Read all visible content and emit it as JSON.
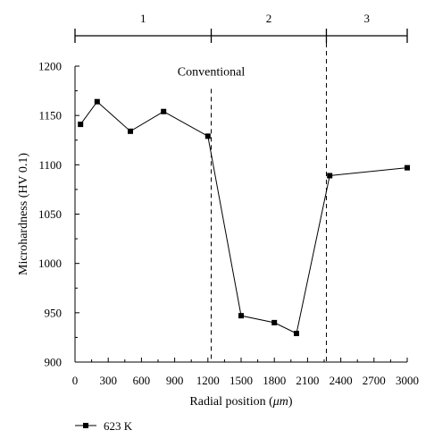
{
  "chart_data": {
    "type": "line",
    "title": "",
    "xlabel_prefix": "Radial position (",
    "xlabel_unit": "μm",
    "xlabel_suffix": ")",
    "ylabel": "Microhardness (HV 0.1)",
    "xlim": [
      0,
      3000
    ],
    "ylim": [
      900,
      1200
    ],
    "x_ticks": [
      0,
      300,
      600,
      900,
      1200,
      1500,
      1800,
      2100,
      2400,
      2700,
      3000
    ],
    "y_ticks": [
      900,
      950,
      1000,
      1050,
      1100,
      1150,
      1200
    ],
    "grid": false,
    "legend_position": "bottom-left",
    "series": [
      {
        "name": "623 K",
        "color": "#000000",
        "marker": "square",
        "x": [
          50,
          200,
          500,
          800,
          1200,
          1500,
          1800,
          2000,
          2300,
          3000
        ],
        "y": [
          1141,
          1164,
          1134,
          1154,
          1129,
          947,
          940,
          929,
          1089,
          1097
        ]
      }
    ],
    "region_boundaries": [
      1230,
      2270
    ],
    "regions": [
      {
        "label": "1",
        "from": 0,
        "to": 1230
      },
      {
        "label": "2",
        "from": 1230,
        "to": 2270
      },
      {
        "label": "3",
        "from": 2270,
        "to": 3000
      }
    ],
    "annotation": {
      "text": "Conventional",
      "x": 1230,
      "y": 1195
    }
  }
}
